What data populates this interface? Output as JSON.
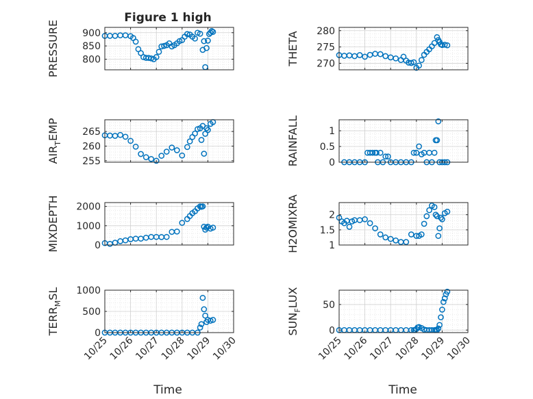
{
  "figure_title": "Figure 1 high",
  "x_tick_labels": [
    "10/25",
    "10/26",
    "10/27",
    "10/28",
    "10/29",
    "10/30"
  ],
  "x_label": "Time",
  "marker_color": "#0072BD",
  "chart_data": [
    {
      "type": "scatter",
      "ylabel": "PRESSURE",
      "xlim": [
        0,
        5
      ],
      "ylim": [
        760,
        920
      ],
      "yticks": [
        800,
        850,
        900
      ],
      "x": [
        0,
        0.2,
        0.4,
        0.6,
        0.8,
        1.0,
        1.1,
        1.2,
        1.3,
        1.4,
        1.5,
        1.6,
        1.7,
        1.8,
        1.9,
        2.0,
        2.1,
        2.2,
        2.3,
        2.4,
        2.5,
        2.6,
        2.7,
        2.8,
        2.9,
        3.0,
        3.1,
        3.2,
        3.3,
        3.4,
        3.5,
        3.6,
        3.7,
        3.8,
        3.85,
        3.9,
        3.95,
        4.0,
        4.05,
        4.1,
        4.15,
        4.2
      ],
      "y": [
        888,
        888,
        888,
        890,
        890,
        887,
        880,
        866,
        838,
        823,
        808,
        805,
        805,
        803,
        800,
        808,
        828,
        848,
        850,
        853,
        860,
        848,
        853,
        860,
        868,
        872,
        885,
        895,
        893,
        885,
        878,
        900,
        896,
        835,
        868,
        770,
        842,
        870,
        895,
        900,
        906,
        903
      ]
    },
    {
      "type": "scatter",
      "ylabel": "THETA",
      "xlim": [
        0,
        5
      ],
      "ylim": [
        268,
        281
      ],
      "yticks": [
        270,
        275,
        280
      ],
      "x": [
        0,
        0.2,
        0.4,
        0.6,
        0.8,
        1.0,
        1.2,
        1.4,
        1.6,
        1.8,
        2.0,
        2.2,
        2.4,
        2.5,
        2.6,
        2.7,
        2.8,
        2.9,
        3.0,
        3.1,
        3.2,
        3.3,
        3.4,
        3.5,
        3.6,
        3.7,
        3.8,
        3.85,
        3.9,
        3.95,
        4.0,
        4.1,
        4.2
      ],
      "y": [
        272.5,
        272.3,
        272.4,
        272.2,
        272.5,
        272.0,
        272.6,
        272.9,
        272.8,
        272.2,
        271.8,
        271.5,
        271.0,
        272.0,
        270.8,
        270.2,
        270.1,
        270.3,
        268.6,
        269.3,
        271.0,
        272.6,
        273.5,
        274.3,
        275.2,
        276.2,
        278.0,
        277.1,
        276.5,
        275.8,
        275.6,
        275.7,
        275.5
      ]
    },
    {
      "type": "scatter",
      "ylabel": "AIR_TEMP",
      "xlim": [
        0,
        5
      ],
      "ylim": [
        254.5,
        269
      ],
      "yticks": [
        255,
        260,
        265
      ],
      "x": [
        0,
        0.2,
        0.4,
        0.6,
        0.8,
        1.0,
        1.2,
        1.4,
        1.6,
        1.8,
        2.0,
        2.2,
        2.4,
        2.6,
        2.8,
        3.0,
        3.2,
        3.3,
        3.4,
        3.5,
        3.6,
        3.7,
        3.75,
        3.8,
        3.85,
        3.9,
        3.95,
        4.0,
        4.1,
        4.2
      ],
      "y": [
        263.7,
        263.6,
        263.5,
        263.8,
        263.2,
        261.8,
        259.8,
        257.3,
        256.2,
        255.6,
        255.0,
        256.7,
        258.1,
        259.5,
        258.6,
        256.8,
        259.7,
        261.6,
        263.1,
        264.3,
        265.8,
        266.1,
        262.1,
        266.9,
        257.4,
        264.2,
        266.1,
        265.5,
        267.6,
        268.2
      ]
    },
    {
      "type": "scatter",
      "ylabel": "RAINFALL",
      "xlim": [
        0,
        5
      ],
      "ylim": [
        0,
        1.35
      ],
      "yticks": [
        0,
        0.5,
        1
      ],
      "x": [
        0.2,
        0.4,
        0.6,
        0.8,
        1.0,
        1.1,
        1.2,
        1.3,
        1.4,
        1.45,
        1.5,
        1.6,
        1.7,
        1.8,
        1.9,
        2.0,
        2.2,
        2.4,
        2.6,
        2.8,
        2.9,
        3.0,
        3.1,
        3.2,
        3.3,
        3.4,
        3.5,
        3.6,
        3.7,
        3.75,
        3.8,
        3.85,
        3.9,
        4.0,
        4.1,
        4.2
      ],
      "y": [
        0,
        0,
        0,
        0,
        0,
        0.3,
        0.3,
        0.3,
        0.3,
        0.3,
        0,
        0.3,
        0,
        0.18,
        0.18,
        0,
        0,
        0,
        0,
        0,
        0.3,
        0.3,
        0.5,
        0.25,
        0.3,
        0,
        0.3,
        0,
        0.3,
        0.7,
        0.7,
        1.3,
        0,
        0,
        0,
        0
      ]
    },
    {
      "type": "scatter",
      "ylabel": "MIXDEPTH",
      "xlim": [
        0,
        5
      ],
      "ylim": [
        0,
        2200
      ],
      "yticks": [
        0,
        1000,
        2000
      ],
      "x": [
        0,
        0.2,
        0.4,
        0.6,
        0.8,
        1.0,
        1.2,
        1.4,
        1.6,
        1.8,
        2.0,
        2.2,
        2.4,
        2.6,
        2.8,
        3.0,
        3.2,
        3.3,
        3.4,
        3.5,
        3.6,
        3.7,
        3.75,
        3.8,
        3.85,
        3.9,
        3.95,
        4.0,
        4.1,
        4.2
      ],
      "y": [
        100,
        60,
        120,
        200,
        240,
        300,
        330,
        330,
        380,
        420,
        420,
        410,
        420,
        680,
        700,
        1150,
        1350,
        1500,
        1650,
        1750,
        1900,
        2000,
        1980,
        2000,
        950,
        800,
        900,
        950,
        850,
        900
      ]
    },
    {
      "type": "scatter",
      "ylabel": "H2OMIXRA",
      "xlim": [
        0,
        5
      ],
      "ylim": [
        1,
        2.4
      ],
      "yticks": [
        1,
        1.5,
        2
      ],
      "x": [
        0,
        0.1,
        0.2,
        0.3,
        0.4,
        0.5,
        0.6,
        0.8,
        1.0,
        1.2,
        1.4,
        1.6,
        1.8,
        2.0,
        2.2,
        2.4,
        2.6,
        2.8,
        3.0,
        3.1,
        3.2,
        3.3,
        3.4,
        3.5,
        3.6,
        3.7,
        3.75,
        3.8,
        3.85,
        3.9,
        3.95,
        4.0,
        4.1,
        4.2
      ],
      "y": [
        1.9,
        1.78,
        1.72,
        1.8,
        1.6,
        1.78,
        1.82,
        1.82,
        1.85,
        1.72,
        1.55,
        1.35,
        1.25,
        1.2,
        1.15,
        1.1,
        1.1,
        1.35,
        1.3,
        1.3,
        1.35,
        1.7,
        1.95,
        2.15,
        2.3,
        2.25,
        2.0,
        1.95,
        1.3,
        1.55,
        1.9,
        1.85,
        2.05,
        2.1
      ]
    },
    {
      "type": "scatter",
      "ylabel": "TERR_MSL",
      "xlim": [
        0,
        5
      ],
      "ylim": [
        0,
        1000
      ],
      "yticks": [
        0,
        500,
        1000
      ],
      "x": [
        0,
        0.2,
        0.4,
        0.6,
        0.8,
        1.0,
        1.2,
        1.4,
        1.6,
        1.8,
        2.0,
        2.2,
        2.4,
        2.6,
        2.8,
        3.0,
        3.2,
        3.4,
        3.6,
        3.7,
        3.75,
        3.8,
        3.85,
        3.9,
        3.95,
        4.0,
        4.1,
        4.2
      ],
      "y": [
        0,
        0,
        0,
        0,
        0,
        0,
        0,
        0,
        0,
        0,
        0,
        0,
        0,
        0,
        0,
        0,
        0,
        0,
        0,
        120,
        200,
        820,
        550,
        400,
        250,
        300,
        280,
        300
      ]
    },
    {
      "type": "scatter",
      "ylabel": "SUN_FLUX",
      "xlim": [
        0,
        5
      ],
      "ylim": [
        -5,
        78
      ],
      "yticks": [
        0,
        50
      ],
      "x": [
        0,
        0.2,
        0.4,
        0.6,
        0.8,
        1.0,
        1.2,
        1.4,
        1.6,
        1.8,
        2.0,
        2.2,
        2.4,
        2.6,
        2.8,
        2.9,
        2.95,
        3.0,
        3.05,
        3.1,
        3.2,
        3.3,
        3.4,
        3.5,
        3.6,
        3.7,
        3.75,
        3.8,
        3.85,
        3.9,
        3.95,
        4.0,
        4.05,
        4.1,
        4.15,
        4.2
      ],
      "y": [
        0,
        0,
        0,
        0,
        0,
        0,
        0,
        0,
        0,
        0,
        0,
        0,
        0,
        0,
        0,
        0,
        0,
        2,
        5,
        6,
        4,
        1,
        0,
        0,
        0,
        0,
        0,
        0,
        3,
        10,
        25,
        40,
        55,
        62,
        70,
        75
      ]
    }
  ]
}
